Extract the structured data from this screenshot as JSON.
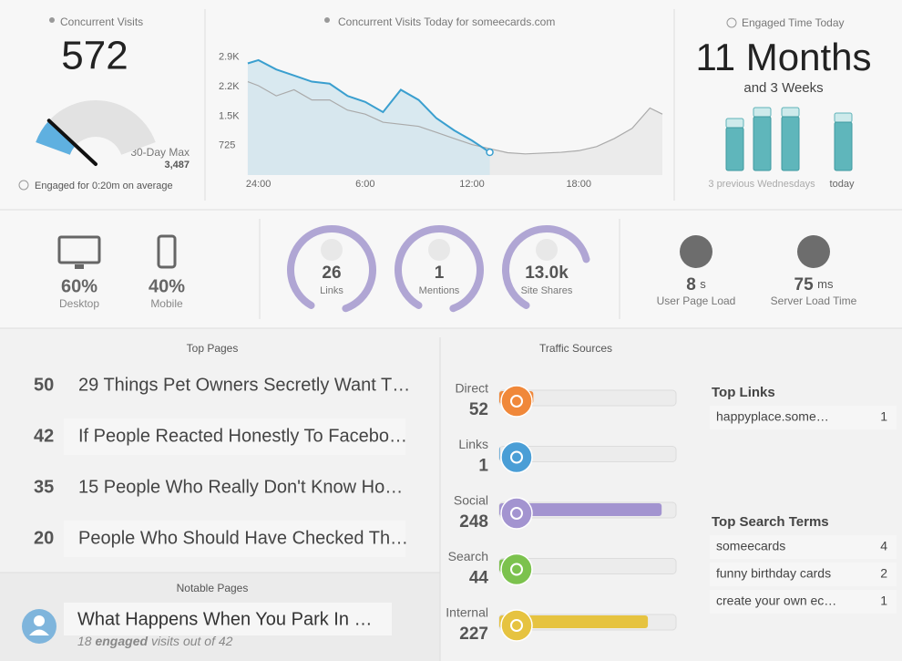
{
  "concurrent": {
    "title": "Concurrent Visits",
    "value": 572,
    "max_label": "30-Day Max",
    "max": {
      "value": 3487,
      "label": "3,487"
    },
    "engaged": "Engaged for 0:20m on average"
  },
  "chart_data": {
    "type": "line",
    "title": "Concurrent Visits Today for someecards.com",
    "x": [
      -0.6,
      0,
      1,
      2,
      3,
      4,
      5,
      6,
      7,
      8,
      9,
      10,
      11,
      12,
      13,
      14,
      15,
      16,
      17,
      18,
      19,
      20,
      21,
      22,
      22.7
    ],
    "xlim": [
      -0.7,
      22.7
    ],
    "xticks": [
      {
        "value": 0,
        "label": "24:00"
      },
      {
        "value": 6,
        "label": "6:00"
      },
      {
        "value": 12,
        "label": "12:00"
      },
      {
        "value": 18,
        "label": "18:00"
      }
    ],
    "ylim": [
      0,
      3300
    ],
    "yticks": [
      725,
      {
        "value": 1450,
        "label": "1.5K"
      },
      {
        "value": 2175,
        "label": "2.2K"
      },
      {
        "value": 2900,
        "label": "2.9K"
      }
    ],
    "series": [
      {
        "color": "#aaaaaa",
        "values": [
          2300,
          2200,
          1950,
          2100,
          1850,
          1850,
          1600,
          1500,
          1300,
          1250,
          1200,
          1050,
          900,
          750,
          650,
          550,
          520,
          540,
          560,
          600,
          700,
          900,
          1150,
          1650,
          1500
        ]
      },
      {
        "color": "#3a9fcf",
        "values": [
          2750,
          2830,
          2600,
          2450,
          2300,
          2250,
          1950,
          1800,
          1550,
          2100,
          1850,
          1400,
          1100,
          850,
          560,
          null,
          null,
          null,
          null,
          null,
          null,
          null,
          null,
          null,
          null
        ]
      }
    ]
  },
  "engaged_time": {
    "title": "Engaged Time Today",
    "value": "11 Months",
    "sub": "and 3 Weeks",
    "bars": [
      57,
      69,
      69,
      63
    ],
    "ylim": [
      0,
      75
    ],
    "label_previous": "3 previous Wednesdays",
    "label_today": "today"
  },
  "devices": [
    {
      "value": "60%",
      "label": "Desktop"
    },
    {
      "value": "40%",
      "label": "Mobile"
    }
  ],
  "social": [
    {
      "value": "26",
      "label": "Links"
    },
    {
      "value": "1",
      "label": "Mentions"
    },
    {
      "value": "13.0k",
      "label": "Site Shares"
    }
  ],
  "performance": [
    {
      "value": "8",
      "unit": "s",
      "label": "User Page Load"
    },
    {
      "value": "75",
      "unit": "ms",
      "label": "Server Load Time"
    }
  ],
  "top_pages": {
    "title": "Top Pages",
    "rows": [
      {
        "count": "50",
        "title": "29 Things Pet Owners Secretly Want T…"
      },
      {
        "count": "42",
        "title": "If People Reacted Honestly To Facebo…"
      },
      {
        "count": "35",
        "title": "15 People Who Really Don't Know Ho…"
      },
      {
        "count": "20",
        "title": "People Who Should Have Checked Th…"
      }
    ]
  },
  "notable": {
    "title": "Notable Pages",
    "headline": "What Happens When You Park In …",
    "count": "18",
    "word": "engaged",
    "rest": "visits out of 42"
  },
  "traffic": {
    "title": "Traffic Sources",
    "xlim": [
      0,
      270
    ],
    "sources": [
      {
        "name": "Direct",
        "value": 52,
        "color": "#f0883a"
      },
      {
        "name": "Links",
        "value": 1,
        "color": "#4a9ed6"
      },
      {
        "name": "Social",
        "value": 248,
        "color": "#a394d0"
      },
      {
        "name": "Search",
        "value": 44,
        "color": "#7cc24e"
      },
      {
        "name": "Internal",
        "value": 227,
        "color": "#e6c340"
      }
    ]
  },
  "top_links": {
    "title": "Top Links",
    "rows": [
      {
        "label": "happyplace.some…",
        "count": "1"
      }
    ]
  },
  "top_search": {
    "title": "Top Search Terms",
    "rows": [
      {
        "label": "someecards",
        "count": "4"
      },
      {
        "label": "funny birthday cards",
        "count": "2"
      },
      {
        "label": "create your own ec…",
        "count": "1"
      }
    ]
  }
}
